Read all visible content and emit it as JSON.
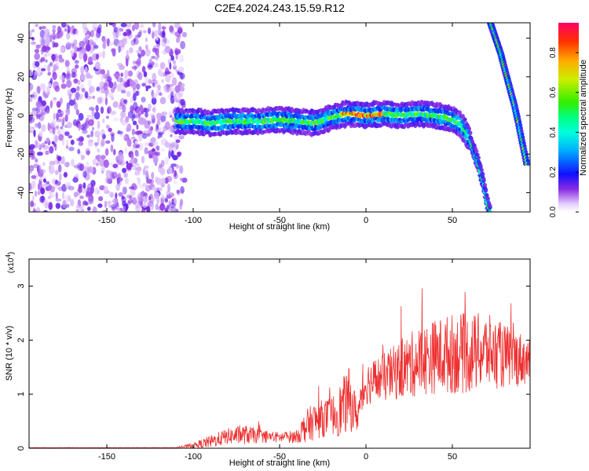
{
  "title": "C2E4.2024.243.15.59.R12",
  "chart_data": [
    {
      "type": "heatmap",
      "xlabel": "Height of straight line (km)",
      "ylabel": "Frequency (Hz)",
      "xlim": [
        -195,
        95
      ],
      "ylim": [
        -50,
        48
      ],
      "xticks": [
        -150,
        -100,
        -50,
        0,
        50
      ],
      "yticks": [
        -40,
        -20,
        0,
        20,
        40
      ],
      "grid": false,
      "colorbar": {
        "label": "Normalized spectral amplitude",
        "range": [
          0,
          0.95
        ],
        "ticks": [
          0.0,
          0.2,
          0.4,
          0.6,
          0.8
        ],
        "tick_labels": [
          "0.0",
          "0.2",
          "0.4",
          "0.6",
          "0.8"
        ]
      },
      "noise_region_x": [
        -195,
        -105
      ],
      "ridge": {
        "x": [
          -110,
          -100,
          -90,
          -80,
          -70,
          -60,
          -50,
          -40,
          -30,
          -20,
          -10,
          0,
          10,
          20,
          30,
          40,
          45,
          50,
          55,
          60,
          65,
          68,
          70,
          72
        ],
        "y": [
          -3,
          -3,
          -4,
          -3,
          -3,
          -3,
          -2,
          -3,
          -4,
          -1,
          1,
          0,
          1,
          0,
          1,
          0,
          -1,
          -2,
          -5,
          -12,
          -25,
          -35,
          -45,
          -50
        ]
      },
      "second_track": {
        "x": [
          72,
          75,
          78,
          80,
          83,
          86,
          88,
          90,
          93
        ],
        "y": [
          48,
          40,
          32,
          25,
          15,
          5,
          -3,
          -12,
          -25
        ]
      }
    },
    {
      "type": "line",
      "xlabel": "Height of straight line (km)",
      "ylabel": "SNR (10 * v/v)",
      "y_multiplier": "(x10",
      "y_multiplier_exp": "4",
      "y_multiplier_close": ")",
      "xlim": [
        -195,
        95
      ],
      "ylim": [
        0,
        3.5
      ],
      "xticks": [
        -150,
        -100,
        -50,
        0,
        50
      ],
      "yticks": [
        0,
        1,
        2,
        3
      ],
      "color": "#ee3030",
      "grid": false,
      "envelope": {
        "x": [
          -195,
          -110,
          -100,
          -90,
          -80,
          -70,
          -60,
          -50,
          -40,
          -35,
          -30,
          -20,
          -15,
          -10,
          -5,
          0,
          10,
          20,
          30,
          40,
          50,
          60,
          70,
          80,
          90,
          95
        ],
        "mean": [
          0.01,
          0.01,
          0.05,
          0.12,
          0.22,
          0.25,
          0.22,
          0.2,
          0.22,
          0.4,
          0.5,
          0.6,
          0.7,
          0.9,
          0.6,
          1.2,
          1.3,
          1.45,
          1.6,
          1.7,
          1.75,
          1.75,
          1.8,
          1.7,
          1.65,
          1.6
        ],
        "spread": [
          0.003,
          0.003,
          0.05,
          0.12,
          0.15,
          0.18,
          0.12,
          0.1,
          0.12,
          0.3,
          0.35,
          0.35,
          0.5,
          0.6,
          0.3,
          0.4,
          0.45,
          0.55,
          0.65,
          0.7,
          0.75,
          0.75,
          0.7,
          0.6,
          0.5,
          0.4
        ]
      }
    }
  ]
}
